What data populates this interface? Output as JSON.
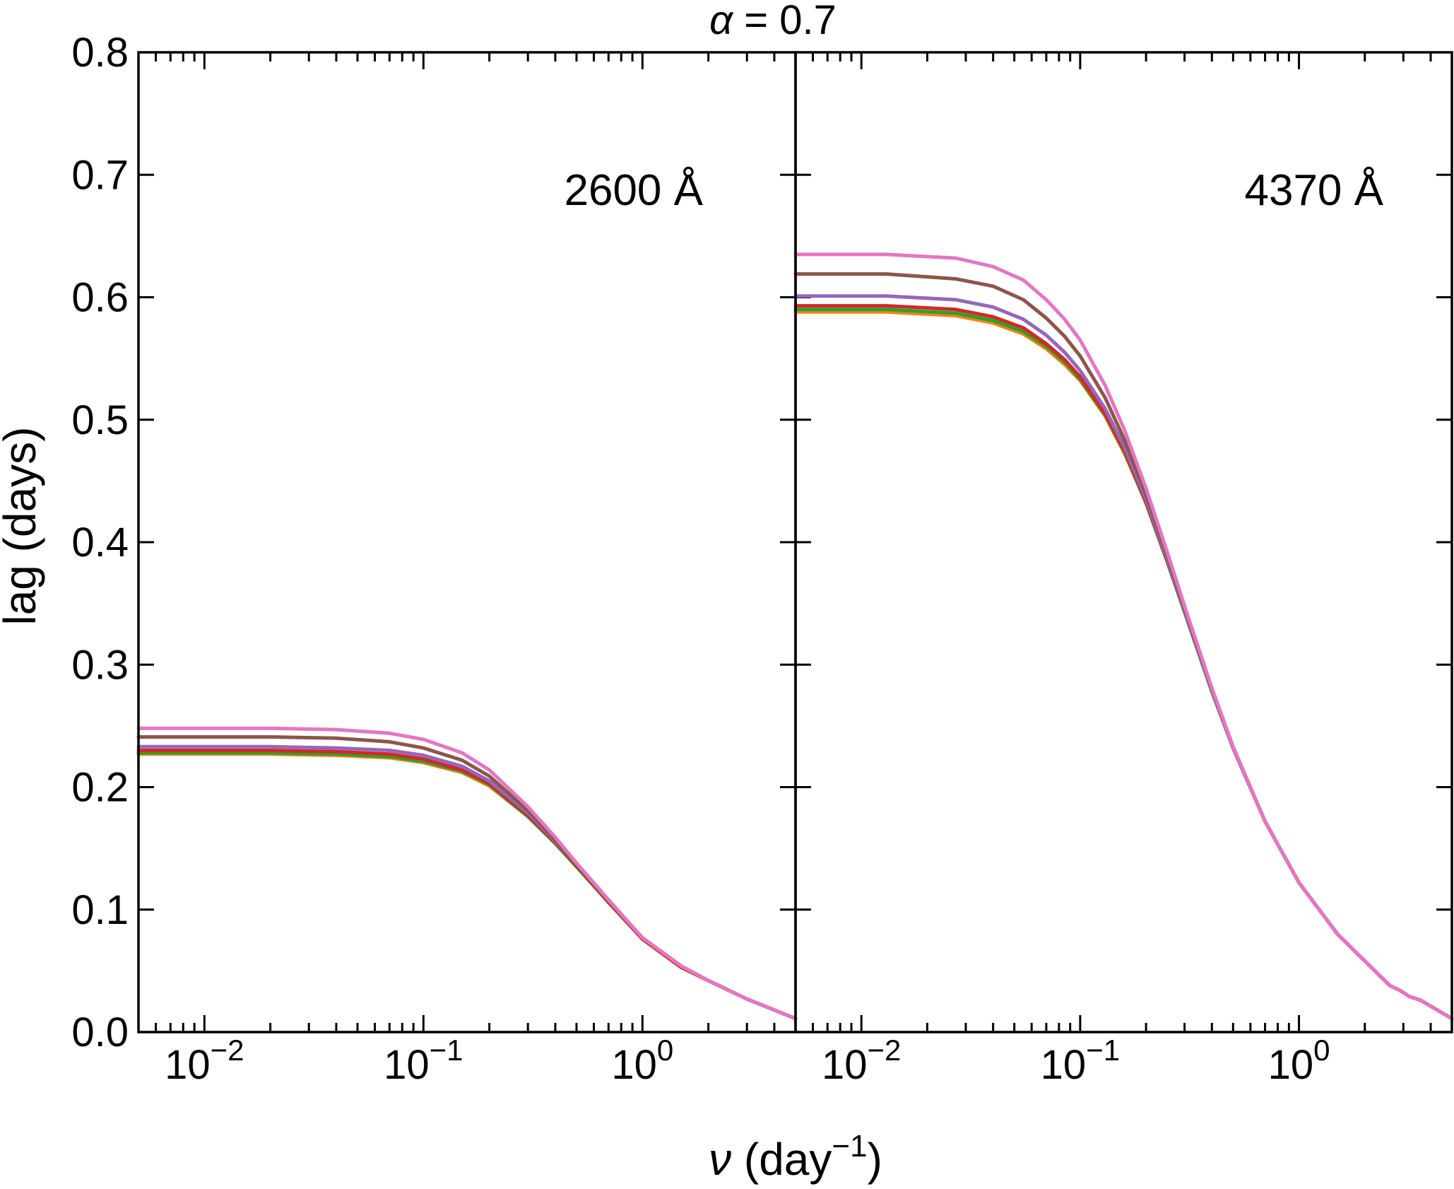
{
  "chart_data": {
    "type": "line",
    "title_symbol": "α",
    "title_rest": " = 0.7",
    "ylabel": "lag (days)",
    "xlabel_symbol": "ν",
    "xlabel_rest": " (day",
    "xlabel_sup": "−1",
    "xlabel_close": ")",
    "xscale": "log",
    "xlim": [
      0.005,
      5
    ],
    "ylim": [
      0.0,
      0.8
    ],
    "yticks": [
      "0.0",
      "0.1",
      "0.2",
      "0.3",
      "0.4",
      "0.5",
      "0.6",
      "0.7",
      "0.8"
    ],
    "xticks": [
      {
        "base": "10",
        "exp": "−2"
      },
      {
        "base": "10",
        "exp": "−1"
      },
      {
        "base": "10",
        "exp": "0"
      }
    ],
    "series_colors": [
      "#ff7f0e",
      "#2ca02c",
      "#d62728",
      "#9467bd",
      "#8c564b",
      "#e377c2"
    ],
    "panels": [
      {
        "label": "2600 Å",
        "x": [
          0.005,
          0.01,
          0.02,
          0.04,
          0.07,
          0.1,
          0.15,
          0.2,
          0.3,
          0.4,
          0.5,
          0.7,
          1.0,
          1.5,
          2.0,
          3.0,
          5.0
        ],
        "series": [
          {
            "values": [
              0.227,
              0.227,
              0.227,
              0.226,
              0.224,
              0.22,
              0.212,
              0.201,
              0.176,
              0.154,
              0.135,
              0.106,
              0.076,
              0.053,
              0.042,
              0.027,
              0.011
            ]
          },
          {
            "values": [
              0.228,
              0.228,
              0.228,
              0.227,
              0.225,
              0.221,
              0.213,
              0.202,
              0.176,
              0.154,
              0.135,
              0.106,
              0.076,
              0.053,
              0.042,
              0.027,
              0.011
            ]
          },
          {
            "values": [
              0.23,
              0.23,
              0.23,
              0.229,
              0.227,
              0.223,
              0.214,
              0.203,
              0.177,
              0.155,
              0.136,
              0.106,
              0.076,
              0.053,
              0.042,
              0.027,
              0.011
            ]
          },
          {
            "values": [
              0.233,
              0.233,
              0.233,
              0.232,
              0.23,
              0.226,
              0.217,
              0.205,
              0.179,
              0.156,
              0.137,
              0.107,
              0.077,
              0.054,
              0.042,
              0.027,
              0.011
            ]
          },
          {
            "values": [
              0.241,
              0.241,
              0.241,
              0.24,
              0.237,
              0.232,
              0.222,
              0.209,
              0.181,
              0.157,
              0.137,
              0.107,
              0.077,
              0.054,
              0.042,
              0.027,
              0.011
            ]
          },
          {
            "values": [
              0.248,
              0.248,
              0.248,
              0.247,
              0.244,
              0.239,
              0.228,
              0.214,
              0.184,
              0.159,
              0.138,
              0.108,
              0.077,
              0.054,
              0.042,
              0.027,
              0.011
            ]
          }
        ]
      },
      {
        "label": "4370 Å",
        "x": [
          0.005,
          0.013,
          0.027,
          0.04,
          0.055,
          0.07,
          0.085,
          0.1,
          0.13,
          0.16,
          0.2,
          0.25,
          0.3,
          0.4,
          0.5,
          0.7,
          1.0,
          1.5,
          2.0,
          2.6,
          2.9,
          3.2,
          3.6,
          5.0
        ],
        "series": [
          {
            "values": [
              0.588,
              0.588,
              0.585,
              0.579,
              0.57,
              0.558,
              0.545,
              0.532,
              0.503,
              0.472,
              0.432,
              0.384,
              0.343,
              0.278,
              0.232,
              0.172,
              0.122,
              0.08,
              0.058,
              0.038,
              0.034,
              0.029,
              0.026,
              0.011
            ]
          },
          {
            "values": [
              0.59,
              0.59,
              0.587,
              0.581,
              0.572,
              0.56,
              0.547,
              0.533,
              0.504,
              0.473,
              0.432,
              0.384,
              0.343,
              0.278,
              0.232,
              0.172,
              0.122,
              0.08,
              0.058,
              0.038,
              0.034,
              0.029,
              0.026,
              0.011
            ]
          },
          {
            "values": [
              0.593,
              0.593,
              0.59,
              0.584,
              0.575,
              0.562,
              0.549,
              0.535,
              0.505,
              0.474,
              0.433,
              0.385,
              0.344,
              0.279,
              0.232,
              0.172,
              0.122,
              0.08,
              0.058,
              0.038,
              0.034,
              0.029,
              0.026,
              0.011
            ]
          },
          {
            "values": [
              0.601,
              0.601,
              0.598,
              0.592,
              0.582,
              0.569,
              0.555,
              0.54,
              0.509,
              0.477,
              0.435,
              0.386,
              0.344,
              0.279,
              0.232,
              0.172,
              0.122,
              0.08,
              0.058,
              0.038,
              0.034,
              0.029,
              0.026,
              0.011
            ]
          },
          {
            "values": [
              0.619,
              0.619,
              0.615,
              0.609,
              0.598,
              0.583,
              0.568,
              0.552,
              0.518,
              0.483,
              0.439,
              0.389,
              0.346,
              0.28,
              0.233,
              0.172,
              0.122,
              0.08,
              0.058,
              0.038,
              0.034,
              0.029,
              0.026,
              0.011
            ]
          },
          {
            "values": [
              0.635,
              0.635,
              0.632,
              0.625,
              0.614,
              0.598,
              0.582,
              0.565,
              0.528,
              0.491,
              0.444,
              0.392,
              0.348,
              0.281,
              0.233,
              0.172,
              0.122,
              0.08,
              0.058,
              0.038,
              0.034,
              0.029,
              0.026,
              0.011
            ]
          }
        ]
      }
    ]
  }
}
